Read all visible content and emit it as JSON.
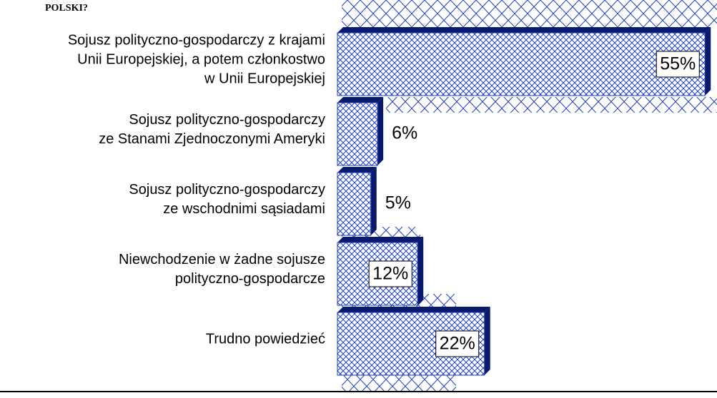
{
  "chart_data": {
    "type": "bar",
    "orientation": "horizontal",
    "title": "POLSKI?",
    "categories": [
      [
        "Sojusz polityczno-gospodarczy z krajami",
        "Unii Europejskiej, a potem członkostwo",
        "w Unii Europejskiej"
      ],
      [
        "Sojusz polityczno-gospodarczy",
        "ze Stanami Zjednoczonymi Ameryki"
      ],
      [
        "Sojusz polityczno-gospodarczy",
        "ze wschodnimi sąsiadami"
      ],
      [
        "Niewchodzenie w żadne sojusze",
        "polityczno-gospodarcze"
      ],
      [
        "Trudno powiedzieć"
      ]
    ],
    "values": [
      55,
      6,
      5,
      12,
      22
    ],
    "value_labels": [
      "55%",
      "6%",
      "5%",
      "12%",
      "22%"
    ],
    "color": "#1f3fbf"
  }
}
